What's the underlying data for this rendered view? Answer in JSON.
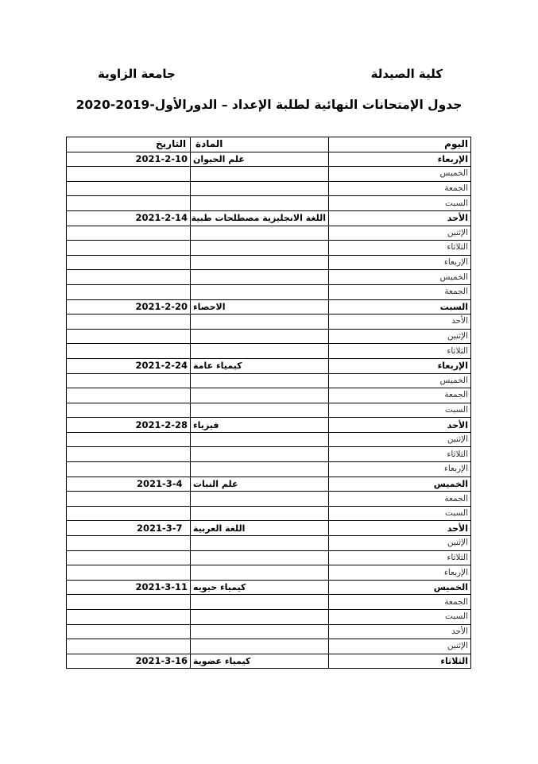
{
  "header": {
    "faculty": "كلية الصيدلة",
    "university": "جامعة الزاوية",
    "title": "جدول الإمتحانات النهائية لطلبة الإعداد – الدورالأول-2019-2020"
  },
  "table": {
    "columns": {
      "day": "اليوم",
      "subject": "المادة",
      "date": "التاريخ"
    },
    "rows": [
      {
        "day": "الإربعاء",
        "subject": "علم الحيوان",
        "date": "2021-2-10"
      },
      {
        "day": "الخميس",
        "subject": "",
        "date": ""
      },
      {
        "day": "الجمعة",
        "subject": "",
        "date": ""
      },
      {
        "day": "السبت",
        "subject": "",
        "date": ""
      },
      {
        "day": "الأحد",
        "subject": "اللغة الانجليزية مصطلحات طبية",
        "date": "2021-2-14"
      },
      {
        "day": "الإثنين",
        "subject": "",
        "date": ""
      },
      {
        "day": "الثلاثاء",
        "subject": "",
        "date": ""
      },
      {
        "day": "الإربعاء",
        "subject": "",
        "date": ""
      },
      {
        "day": "الخميس",
        "subject": "",
        "date": ""
      },
      {
        "day": "الجمعة",
        "subject": "",
        "date": ""
      },
      {
        "day": "السبت",
        "subject": "الاحصاء",
        "date": "2021-2-20"
      },
      {
        "day": "الأحد",
        "subject": "",
        "date": ""
      },
      {
        "day": "الإثنين",
        "subject": "",
        "date": ""
      },
      {
        "day": "الثلاثاء",
        "subject": "",
        "date": ""
      },
      {
        "day": "الإربعاء",
        "subject": "كيمياء عامة",
        "date": "2021-2-24"
      },
      {
        "day": "الخميس",
        "subject": "",
        "date": ""
      },
      {
        "day": "الجمعة",
        "subject": "",
        "date": ""
      },
      {
        "day": "السبت",
        "subject": "",
        "date": ""
      },
      {
        "day": "الأحد",
        "subject": "فيزياء",
        "date": "2021-2-28"
      },
      {
        "day": "الإثنين",
        "subject": "",
        "date": ""
      },
      {
        "day": "الثلاثاء",
        "subject": "",
        "date": ""
      },
      {
        "day": "الإربعاء",
        "subject": "",
        "date": ""
      },
      {
        "day": "الخميس",
        "subject": "علم النبات",
        "date": "2021-3-4"
      },
      {
        "day": "الجمعة",
        "subject": "",
        "date": ""
      },
      {
        "day": "السبت",
        "subject": "",
        "date": ""
      },
      {
        "day": "الأحد",
        "subject": "اللغة العربية",
        "date": "2021-3-7"
      },
      {
        "day": "الإثنين",
        "subject": "",
        "date": ""
      },
      {
        "day": "الثلاثاء",
        "subject": "",
        "date": ""
      },
      {
        "day": "الإربعاء",
        "subject": "",
        "date": ""
      },
      {
        "day": "الخميس",
        "subject": "كيمياء  حيويه",
        "date": "2021-3-11"
      },
      {
        "day": "الجمعة",
        "subject": "",
        "date": ""
      },
      {
        "day": "السبت",
        "subject": "",
        "date": ""
      },
      {
        "day": "الأحد",
        "subject": "",
        "date": ""
      },
      {
        "day": "الإثنين",
        "subject": "",
        "date": ""
      },
      {
        "day": "الثلاثاء",
        "subject": "كيمياء عضوية",
        "date": "2021-3-16"
      }
    ]
  }
}
